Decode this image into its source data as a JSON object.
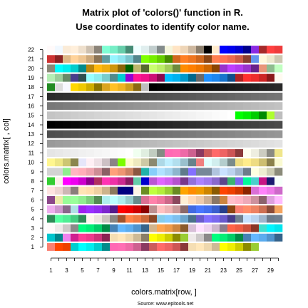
{
  "chart_data": {
    "type": "heatmap",
    "title": "Matrix plot of 'colors()' function in R.",
    "subtitle": "Use coordinates to identify color name.",
    "xlabel": "colors.matrix[row, ]",
    "ylabel": "colors.matrix[ , col]",
    "source": "Source: www.epitools.net",
    "xlim": [
      1,
      30
    ],
    "ylim": [
      1,
      22
    ],
    "x_tick_labels": [
      "1",
      "3",
      "5",
      "7",
      "9",
      "11",
      "13",
      "15",
      "17",
      "19",
      "21",
      "23",
      "25",
      "27",
      "29"
    ],
    "y_tick_labels": [
      "1",
      "2",
      "3",
      "4",
      "5",
      "6",
      "7",
      "8",
      "9",
      "10",
      "11",
      "12",
      "13",
      "14",
      "15",
      "16",
      "17",
      "18",
      "19",
      "20",
      "21",
      "22"
    ],
    "grid": false,
    "legend": "none",
    "rows": [
      [
        "#fffafa",
        "#f0f8ff",
        "#faebd7",
        "#ffefdb",
        "#eedfcc",
        "#cdc0b0",
        "#8b8378",
        "#7fffd4",
        "#76eec6",
        "#66cdaa",
        "#458b74",
        "#f0ffff",
        "#e0eeee",
        "#c1cdcd",
        "#838b8b",
        "#f5f5dc",
        "#ffe4c4",
        "#eed5b7",
        "#cdb79e",
        "#8b7d6b",
        "#000000",
        "#ffebcd",
        "#0000ff",
        "#0000ee",
        "#0000cd",
        "#00008b",
        "#8a2be2",
        "#a52a2a",
        "#ff4040",
        "#ee3b3b"
      ],
      [
        "#cd3333",
        "#8b2323",
        "#deb887",
        "#ffd39b",
        "#eec591",
        "#cdaa7d",
        "#8b7355",
        "#5f9ea0",
        "#98f5ff",
        "#8ee5ee",
        "#7ac5cd",
        "#53868b",
        "#7fff00",
        "#76ee00",
        "#66cd00",
        "#458b00",
        "#d2691e",
        "#ff7f24",
        "#ee7621",
        "#cd661d",
        "#8b4513",
        "#ff7f50",
        "#ff7256",
        "#ee6a50",
        "#cd5b45",
        "#8b3e2f",
        "#6495ed",
        "#fff8dc",
        "#eee8cd",
        "#cdc8b1"
      ],
      [
        "#8b8878",
        "#00ffff",
        "#00eeee",
        "#00cdcd",
        "#008b8b",
        "#b8860b",
        "#ffb90f",
        "#eead0e",
        "#cd950c",
        "#8b6508",
        "#006400",
        "#bdb76b",
        "#556b2f",
        "#caff70",
        "#bcee68",
        "#a2cd5a",
        "#6e8b3d",
        "#ff8c00",
        "#ff7f00",
        "#ee7600",
        "#cd6600",
        "#8b4500",
        "#9932cc",
        "#bf3eff",
        "#b23aee",
        "#9a32cd",
        "#68228b",
        "#e9967a",
        "#8fbc8f",
        "#c1ffc1"
      ],
      [
        "#b4eeb4",
        "#9bcd9b",
        "#698b69",
        "#483d8b",
        "#2f4f4f",
        "#97ffff",
        "#8deeee",
        "#79cdcd",
        "#528b8b",
        "#00ced1",
        "#9400d3",
        "#ff1493",
        "#ee1289",
        "#cd1076",
        "#8b0a50",
        "#00bfff",
        "#00b2ee",
        "#009acd",
        "#00688b",
        "#696969",
        "#1e90ff",
        "#1c86ee",
        "#1874cd",
        "#104e8b",
        "#b22222",
        "#ff3030",
        "#ee2c2c",
        "#cd2626",
        "#8b1a1a",
        "#fffaf0"
      ],
      [
        "#228b22",
        "#dcdcdc",
        "#f8f8ff",
        "#ffd700",
        "#eec900",
        "#cdad00",
        "#8b7500",
        "#daa520",
        "#ffc125",
        "#eeb422",
        "#cd9b1d",
        "#8b6914",
        "#bebebe",
        "#000000",
        "#030303",
        "#050505",
        "#080808",
        "#0a0a0a",
        "#0d0d0d",
        "#0f0f0f",
        "#121212",
        "#141414",
        "#171717",
        "#1a1a1a",
        "#1c1c1c",
        "#1f1f1f",
        "#212121",
        "#242424",
        "#262626",
        "#292929"
      ],
      [
        "#2b2b2b",
        "#2e2e2e",
        "#303030",
        "#333333",
        "#363636",
        "#383838",
        "#3b3b3b",
        "#3d3d3d",
        "#404040",
        "#424242",
        "#454545",
        "#474747",
        "#4a4a4a",
        "#4d4d4d",
        "#4f4f4f",
        "#525252",
        "#545454",
        "#575757",
        "#595959",
        "#5c5c5c",
        "#5e5e5e",
        "#616161",
        "#636363",
        "#666666",
        "#696969",
        "#6b6b6b",
        "#6e6e6e",
        "#707070",
        "#737373",
        "#757575"
      ],
      [
        "#787878",
        "#7a7a7a",
        "#7d7d7d",
        "#7f7f7f",
        "#828282",
        "#858585",
        "#878787",
        "#8a8a8a",
        "#8c8c8c",
        "#8f8f8f",
        "#919191",
        "#949494",
        "#969696",
        "#999999",
        "#9c9c9c",
        "#9e9e9e",
        "#a1a1a1",
        "#a3a3a3",
        "#a6a6a6",
        "#a8a8a8",
        "#ababab",
        "#adadad",
        "#b0b0b0",
        "#b3b3b3",
        "#b5b5b5",
        "#b8b8b8",
        "#bababa",
        "#bdbdbd",
        "#bfbfbf",
        "#c2c2c2"
      ],
      [
        "#c4c4c4",
        "#c7c7c7",
        "#c9c9c9",
        "#cccccc",
        "#cfcfcf",
        "#d1d1d1",
        "#d4d4d4",
        "#d6d6d6",
        "#d9d9d9",
        "#dbdbdb",
        "#dedede",
        "#e0e0e0",
        "#e3e3e3",
        "#e5e5e5",
        "#e8e8e8",
        "#ebebeb",
        "#ededed",
        "#f0f0f0",
        "#f2f2f2",
        "#f5f5f5",
        "#f7f7f7",
        "#fafafa",
        "#fcfcfc",
        "#ffffff",
        "#00ff00",
        "#00ee00",
        "#00cd00",
        "#008b00",
        "#adff2f",
        "#bebebe"
      ],
      [
        "#000000",
        "#030303",
        "#050505",
        "#080808",
        "#0a0a0a",
        "#0d0d0d",
        "#0f0f0f",
        "#121212",
        "#141414",
        "#171717",
        "#1a1a1a",
        "#1c1c1c",
        "#1f1f1f",
        "#212121",
        "#242424",
        "#262626",
        "#292929",
        "#2b2b2b",
        "#2e2e2e",
        "#303030",
        "#333333",
        "#363636",
        "#383838",
        "#3b3b3b",
        "#3d3d3d",
        "#404040",
        "#424242",
        "#454545",
        "#474747",
        "#4a4a4a"
      ],
      [
        "#4d4d4d",
        "#4f4f4f",
        "#525252",
        "#545454",
        "#575757",
        "#595959",
        "#5c5c5c",
        "#5e5e5e",
        "#616161",
        "#636363",
        "#666666",
        "#696969",
        "#6b6b6b",
        "#6e6e6e",
        "#707070",
        "#737373",
        "#757575",
        "#787878",
        "#7a7a7a",
        "#7d7d7d",
        "#7f7f7f",
        "#828282",
        "#858585",
        "#878787",
        "#8a8a8a",
        "#8c8c8c",
        "#8f8f8f",
        "#919191",
        "#949494",
        "#969696"
      ],
      [
        "#999999",
        "#9c9c9c",
        "#9e9e9e",
        "#a1a1a1",
        "#a3a3a3",
        "#a6a6a6",
        "#a8a8a8",
        "#ababab",
        "#adadad",
        "#b0b0b0",
        "#b3b3b3",
        "#b5b5b5",
        "#b8b8b8",
        "#bababa",
        "#bdbdbd",
        "#bfbfbf",
        "#c2c2c2",
        "#c4c4c4",
        "#c7c7c7",
        "#c9c9c9",
        "#cccccc",
        "#cfcfcf",
        "#d1d1d1",
        "#d4d4d4",
        "#d6d6d6",
        "#d9d9d9",
        "#dbdbdb",
        "#dedede",
        "#e0e0e0",
        "#e3e3e3"
      ],
      [
        "#e5e5e5",
        "#e8e8e8",
        "#ebebeb",
        "#ededed",
        "#f0f0f0",
        "#f2f2f2",
        "#f5f5f5",
        "#f7f7f7",
        "#fafafa",
        "#fcfcfc",
        "#ffffff",
        "#f0fff0",
        "#e0eee0",
        "#c1cdc1",
        "#838b83",
        "#ff69b4",
        "#ff6eb4",
        "#ee6aa7",
        "#cd6090",
        "#8b3a62",
        "#cd5c5c",
        "#ff6a6a",
        "#ee6363",
        "#cd5555",
        "#8b3a3a",
        "#fffff0",
        "#eeeee0",
        "#cdcdc1",
        "#8b8b83",
        "#f0e68c"
      ],
      [
        "#fff68f",
        "#eee685",
        "#cdc673",
        "#8b864e",
        "#e6e6fa",
        "#fff0f5",
        "#eee0e5",
        "#cdc1c5",
        "#8b8386",
        "#7cfc00",
        "#fffacd",
        "#eee9bf",
        "#cdc9a5",
        "#8b8970",
        "#add8e6",
        "#bfefff",
        "#b2dfee",
        "#9ac0cd",
        "#68838b",
        "#f08080",
        "#e0ffff",
        "#d1eeee",
        "#b4cdcd",
        "#7a8b8b",
        "#eedd82",
        "#ffec8b",
        "#eedc82",
        "#cdbe70",
        "#8b814c",
        "#fafad2"
      ],
      [
        "#d3d3d3",
        "#d3d3d3",
        "#90ee90",
        "#ffb6c1",
        "#ffaeb9",
        "#eea2ad",
        "#cd8c95",
        "#8b5f65",
        "#ffa07a",
        "#ee9572",
        "#cd8162",
        "#8b5742",
        "#20b2aa",
        "#87cefa",
        "#b0e2ff",
        "#a4d3ee",
        "#8db6cd",
        "#607b8b",
        "#8470ff",
        "#778899",
        "#778899",
        "#b0c4de",
        "#cae1ff",
        "#bcd2ee",
        "#a2b5cd",
        "#6e7b8b",
        "#ffffe0",
        "#eeeed1",
        "#cdcdb4",
        "#8b8b7a"
      ],
      [
        "#32cd32",
        "#faf0e6",
        "#ff00ff",
        "#ee00ee",
        "#cd00cd",
        "#8b008b",
        "#b03060",
        "#ff34b3",
        "#ee30a7",
        "#cd2990",
        "#8b1c62",
        "#66cdaa",
        "#0000cd",
        "#ba55d3",
        "#e066ff",
        "#d15fee",
        "#b452cd",
        "#7a378b",
        "#9370db",
        "#ab82ff",
        "#9f79ee",
        "#8968cd",
        "#5d478b",
        "#3cb371",
        "#7b68ee",
        "#00fa9a",
        "#48d1cc",
        "#c71585",
        "#191970",
        "#f5fffa"
      ],
      [
        "#ffe4e1",
        "#eed5d2",
        "#cdb7b5",
        "#8b7d7b",
        "#ffe4b5",
        "#ffdead",
        "#eecfa1",
        "#cdb38b",
        "#8b795e",
        "#000080",
        "#000080",
        "#fdf5e6",
        "#6b8e23",
        "#c0ff3e",
        "#b3ee3a",
        "#9acd32",
        "#698b22",
        "#ffa500",
        "#ff8c00",
        "#ee9a00",
        "#cd8500",
        "#8b5a00",
        "#ff4500",
        "#ee4000",
        "#cd3700",
        "#8b2500",
        "#da70d6",
        "#ff83fa",
        "#ee7ae9",
        "#cd69c9"
      ],
      [
        "#8b4789",
        "#eee8aa",
        "#98fb98",
        "#9aff9a",
        "#90ee90",
        "#7ccd7c",
        "#548b54",
        "#afeeee",
        "#bbffff",
        "#aeeeee",
        "#96cdcd",
        "#668b8b",
        "#db7093",
        "#ff82ab",
        "#ee799f",
        "#cd6889",
        "#8b475d",
        "#ffefd5",
        "#ffdab9",
        "#eecbad",
        "#cdaf95",
        "#8b7765",
        "#cd853f",
        "#ffc0cb",
        "#ffb5c5",
        "#eea9b8",
        "#cd919e",
        "#8b636c",
        "#dda0dd",
        "#ffbbff"
      ],
      [
        "#eeaeee",
        "#cd96cd",
        "#8b668b",
        "#b0e0e6",
        "#a020f0",
        "#9b30ff",
        "#912cee",
        "#7d26cd",
        "#551a8b",
        "#ff0000",
        "#ee0000",
        "#cd0000",
        "#8b0000",
        "#bc8f8f",
        "#ffc1c1",
        "#eeb4b4",
        "#cd9b9b",
        "#8b6969",
        "#4169e1",
        "#4876ff",
        "#436eee",
        "#3a5fcd",
        "#27408b",
        "#8b4513",
        "#fa8072",
        "#ff8c69",
        "#ee8262",
        "#cd7054",
        "#8b4c39",
        "#f4a460"
      ],
      [
        "#2e8b57",
        "#54ff9f",
        "#4eee94",
        "#43cd80",
        "#2e8b57",
        "#fff5ee",
        "#eee5de",
        "#cdc5bf",
        "#8b8682",
        "#a0522d",
        "#ff8247",
        "#ee7942",
        "#cd6839",
        "#8b4726",
        "#87ceeb",
        "#87ceff",
        "#7ec0ee",
        "#6ca6cd",
        "#4a708b",
        "#6a5acd",
        "#836fff",
        "#7a67ee",
        "#6959cd",
        "#473c8b",
        "#708090",
        "#c6e2ff",
        "#b9d3ee",
        "#9fb6cd",
        "#6c7b8b",
        "#708090"
      ],
      [
        "#fffafa",
        "#eee9e9",
        "#cdc9c9",
        "#8b8989",
        "#00ff7f",
        "#00ee76",
        "#00cd66",
        "#008b45",
        "#4682b4",
        "#63b8ff",
        "#5cacee",
        "#4f94cd",
        "#36648b",
        "#d2b48c",
        "#ffa54f",
        "#ee9a49",
        "#cd853f",
        "#8b5a2b",
        "#d8bfd8",
        "#ffe1ff",
        "#eed2ee",
        "#cdb5cd",
        "#8b7b8b",
        "#ff6347",
        "#ee5c42",
        "#cd4f39",
        "#8b3626",
        "#40e0d0",
        "#00f5ff",
        "#00e5ee"
      ],
      [
        "#00c5cd",
        "#00868b",
        "#ee82ee",
        "#d02090",
        "#ff3e96",
        "#ee3a8c",
        "#cd3278",
        "#8b2252",
        "#f5deb3",
        "#ffe7ba",
        "#eed8ae",
        "#cdba96",
        "#8b7e66",
        "#ffff00",
        "#eeee00",
        "#cdcd00",
        "#8b8b00",
        "#9acd32",
        "#eee9e9",
        "#cdc9c9",
        "#8b8989",
        "#00ff7f",
        "#00ee76",
        "#00cd66",
        "#008b45",
        "#4682b4",
        "#63b8ff",
        "#5cacee",
        "#4f94cd",
        "#36648b"
      ],
      [
        "#fa8072",
        "#ff4500",
        "#ee4000",
        "#00ced1",
        "#00ffff",
        "#00eeee",
        "#00cdcd",
        "#008b8b",
        "#ff69b4",
        "#ff6eb4",
        "#ee6aa7",
        "#cd6090",
        "#8b3a62",
        "#cd5c5c",
        "#ff6a6a",
        "#ee6363",
        "#cd5555",
        "#8b3a3a",
        "#f5deb3",
        "#ffe7ba",
        "#eed8ae",
        "#cdba96",
        "#ffff00",
        "#eeee00",
        "#cdcd00",
        "#8b8b00",
        "#9acd32",
        "#ffffff",
        "#ffffff",
        "#ffffff"
      ]
    ]
  }
}
